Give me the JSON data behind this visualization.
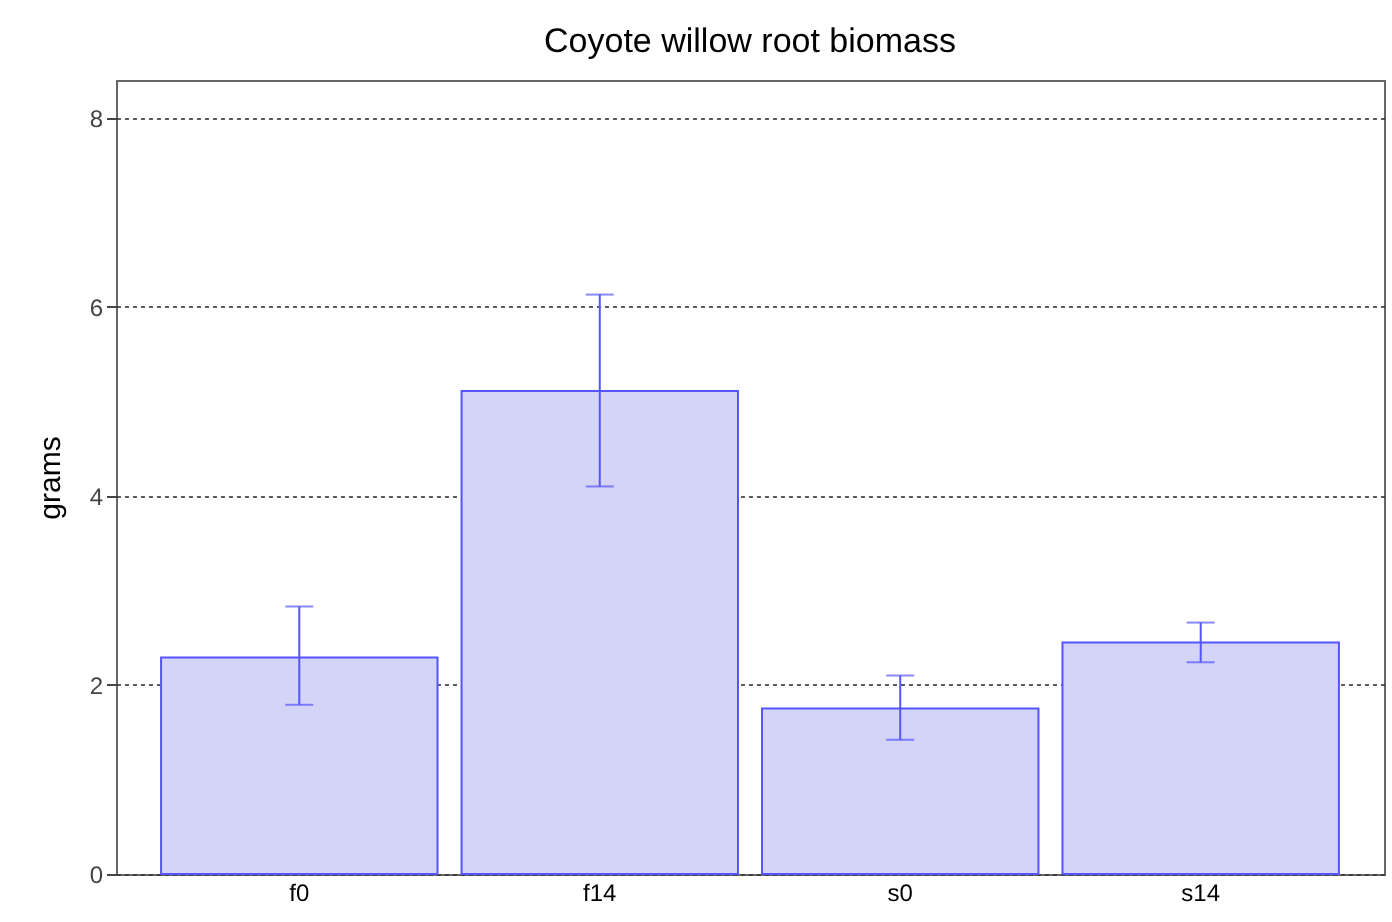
{
  "chart_data": {
    "type": "bar",
    "title": "Coyote willow root biomass",
    "ylabel": "grams",
    "categories": [
      "f0",
      "f14",
      "s0",
      "s14"
    ],
    "values": [
      2.29,
      5.11,
      1.75,
      2.45
    ],
    "errors": [
      [
        1.79,
        2.83
      ],
      [
        4.1,
        6.13
      ],
      [
        1.42,
        2.1
      ],
      [
        2.24,
        2.66
      ]
    ],
    "color": "#d4d4f7",
    "ylim": [
      0,
      8.4
    ],
    "yticks": [
      0,
      2,
      4,
      6,
      8
    ],
    "grid": "y"
  }
}
